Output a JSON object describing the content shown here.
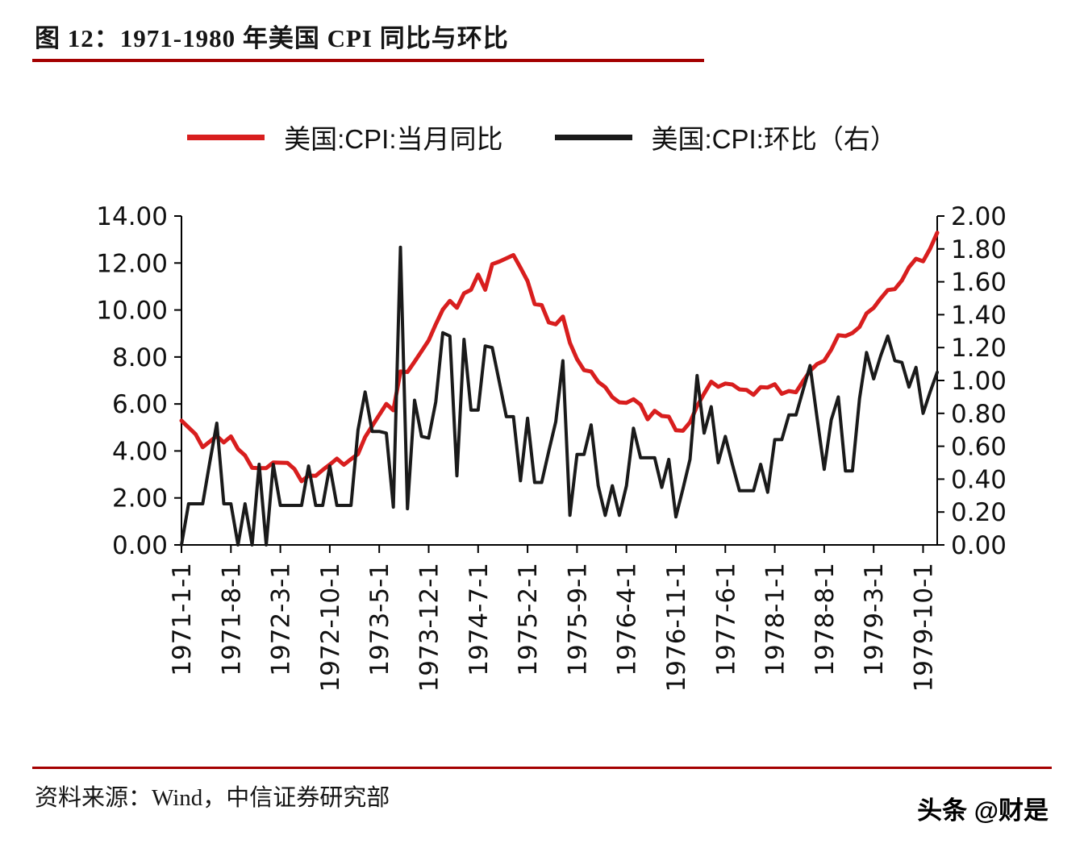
{
  "figure": {
    "title": "图 12：1971-1980 年美国 CPI 同比与环比"
  },
  "legend": {
    "items": [
      {
        "label": "美国:CPI:当月同比",
        "color": "#d81e1e"
      },
      {
        "label": "美国:CPI:环比（右）",
        "color": "#1a1a1a"
      }
    ]
  },
  "footer": {
    "source": "资料来源：Wind，中信证券研究部",
    "watermark": "头条 @财是"
  },
  "colors": {
    "rule_red": "#a40000",
    "series_red": "#d81e1e",
    "series_black": "#1a1a1a",
    "axis_black": "#000000"
  },
  "chart_data": {
    "type": "line",
    "title": "1971-1980 年美国 CPI 同比与环比",
    "x_tick_labels": [
      "1971-1-1",
      "1971-8-1",
      "1972-3-1",
      "1972-10-1",
      "1973-5-1",
      "1973-12-1",
      "1974-7-1",
      "1975-2-1",
      "1975-9-1",
      "1976-4-1",
      "1976-11-1",
      "1977-6-1",
      "1978-1-1",
      "1978-8-1",
      "1979-3-1",
      "1979-10-1"
    ],
    "x_tick_interval": 7,
    "x_start": "1971-01",
    "x_end": "1979-12",
    "grid": false,
    "legend_position": "top",
    "left_axis": {
      "min": 0,
      "max": 14,
      "tick_labels": [
        "0.00",
        "2.00",
        "4.00",
        "6.00",
        "8.00",
        "10.00",
        "12.00",
        "14.00"
      ]
    },
    "right_axis": {
      "min": 0,
      "max": 2,
      "tick_labels": [
        "0.00",
        "0.20",
        "0.40",
        "0.60",
        "0.80",
        "1.00",
        "1.20",
        "1.40",
        "1.60",
        "1.80",
        "2.00"
      ]
    },
    "series": [
      {
        "name": "美国:CPI:当月同比",
        "axis": "left",
        "color": "#d81e1e",
        "values": [
          5.29,
          5.0,
          4.71,
          4.16,
          4.4,
          4.64,
          4.36,
          4.62,
          4.08,
          3.81,
          3.28,
          3.27,
          3.27,
          3.51,
          3.5,
          3.49,
          3.23,
          2.71,
          2.95,
          2.94,
          3.19,
          3.42,
          3.67,
          3.41,
          3.65,
          3.87,
          4.59,
          5.06,
          5.53,
          6.0,
          5.73,
          7.38,
          7.36,
          7.8,
          8.25,
          8.71,
          9.39,
          10.02,
          10.39,
          10.09,
          10.71,
          10.86,
          11.51,
          10.86,
          11.95,
          12.06,
          12.2,
          12.34,
          11.8,
          11.23,
          10.25,
          10.21,
          9.47,
          9.39,
          9.72,
          8.6,
          7.91,
          7.44,
          7.38,
          6.94,
          6.72,
          6.29,
          6.07,
          6.05,
          6.2,
          5.97,
          5.35,
          5.71,
          5.49,
          5.46,
          4.88,
          4.86,
          5.22,
          5.91,
          6.44,
          6.95,
          6.73,
          6.87,
          6.83,
          6.62,
          6.6,
          6.39,
          6.72,
          6.7,
          6.84,
          6.43,
          6.55,
          6.5,
          6.97,
          7.41,
          7.7,
          7.84,
          8.31,
          8.93,
          8.89,
          9.02,
          9.28,
          9.86,
          10.09,
          10.49,
          10.85,
          10.89,
          11.26,
          11.82,
          12.18,
          12.07,
          12.61,
          13.29
        ]
      },
      {
        "name": "美国:CPI:环比（右）",
        "axis": "right",
        "color": "#1a1a1a",
        "values": [
          0.0,
          0.25,
          0.25,
          0.25,
          0.5,
          0.74,
          0.25,
          0.25,
          0.0,
          0.25,
          0.0,
          0.49,
          0.0,
          0.49,
          0.24,
          0.24,
          0.24,
          0.24,
          0.48,
          0.24,
          0.24,
          0.48,
          0.24,
          0.24,
          0.24,
          0.7,
          0.93,
          0.69,
          0.69,
          0.68,
          0.23,
          1.81,
          0.22,
          0.88,
          0.66,
          0.65,
          0.87,
          1.29,
          1.27,
          0.42,
          1.25,
          0.82,
          0.82,
          1.21,
          1.2,
          0.99,
          0.78,
          0.78,
          0.39,
          0.77,
          0.38,
          0.38,
          0.57,
          0.75,
          1.12,
          0.18,
          0.55,
          0.55,
          0.73,
          0.36,
          0.18,
          0.36,
          0.18,
          0.36,
          0.71,
          0.53,
          0.53,
          0.53,
          0.35,
          0.52,
          0.17,
          0.34,
          0.52,
          1.03,
          0.68,
          0.84,
          0.5,
          0.66,
          0.49,
          0.33,
          0.33,
          0.33,
          0.49,
          0.32,
          0.64,
          0.64,
          0.79,
          0.79,
          0.94,
          1.09,
          0.77,
          0.46,
          0.76,
          0.9,
          0.45,
          0.45,
          0.89,
          1.17,
          1.01,
          1.15,
          1.27,
          1.12,
          1.11,
          0.96,
          1.08,
          0.8,
          0.93,
          1.05
        ]
      }
    ]
  }
}
